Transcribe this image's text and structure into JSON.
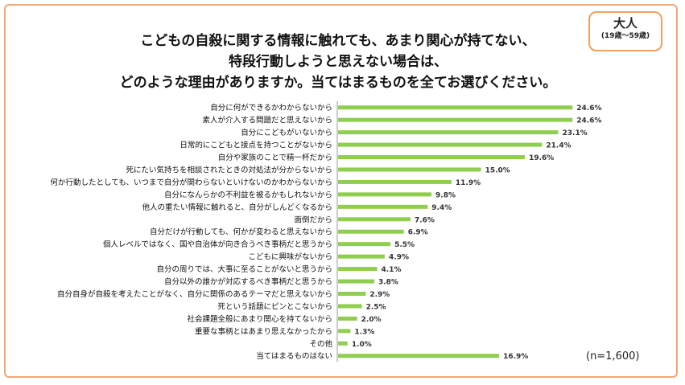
{
  "badge": {
    "main": "大人",
    "sub": "(19歳〜59歳)"
  },
  "title": {
    "line1": "こどもの自殺に関する情報に触れても、あまり関心が持てない、",
    "line2": "特段行動しようと思えない場合は、",
    "line3": "どのような理由がありますか。当てはまるものを全てお選びください。"
  },
  "note": "(n=1,600)",
  "colors": {
    "bar": "#8fce4e",
    "frame": "#f0a878",
    "badge_border": "#f0a060"
  },
  "chart_data": {
    "type": "bar",
    "orientation": "horizontal",
    "unit": "%",
    "categories": [
      "自分に何ができるかわからないから",
      "素人が介入する問題だと思えないから",
      "自分にこどもがいないから",
      "日常的にこどもと接点を持つことがないから",
      "自分や家族のことで精一杯だから",
      "死にたい気持ちを相談されたときの対処法が分からないから",
      "何か行動したとしても、いつまで自分が関わらないといけないのかわからないから",
      "自分になんらかの不利益を被るかもしれないから",
      "他人の重たい情報に触れると、自分がしんどくなるから",
      "面倒だから",
      "自分だけが行動しても、何かが変わると思えないから",
      "個人レベルではなく、国や自治体が向き合うべき事柄だと思うから",
      "こどもに興味がないから",
      "自分の周りでは、大事に至ることがないと思うから",
      "自分以外の誰かが対応するべき事柄だと思うから",
      "自分自身が自殺を考えたことがなく、自分に関係のあるテーマだと思えないから",
      "死という話題にピンとこないから",
      "社会課題全般にあまり関心を持てないから",
      "重要な事柄とはあまり思えなかったから",
      "その他",
      "当てはまるものはない"
    ],
    "values": [
      24.6,
      24.6,
      23.1,
      21.4,
      19.6,
      15.0,
      11.9,
      9.8,
      9.4,
      7.6,
      6.9,
      5.5,
      4.9,
      4.1,
      3.8,
      2.9,
      2.5,
      2.0,
      1.3,
      1.0,
      16.9
    ],
    "value_labels": [
      "24.6%",
      "24.6%",
      "23.1%",
      "21.4%",
      "19.6%",
      "15.0%",
      "11.9%",
      "9.8%",
      "9.4%",
      "7.6%",
      "6.9%",
      "5.5%",
      "4.9%",
      "4.1%",
      "3.8%",
      "2.9%",
      "2.5%",
      "2.0%",
      "1.3%",
      "1.0%",
      "16.9%"
    ],
    "xlim": [
      0,
      25
    ],
    "grid": false,
    "legend": false
  }
}
